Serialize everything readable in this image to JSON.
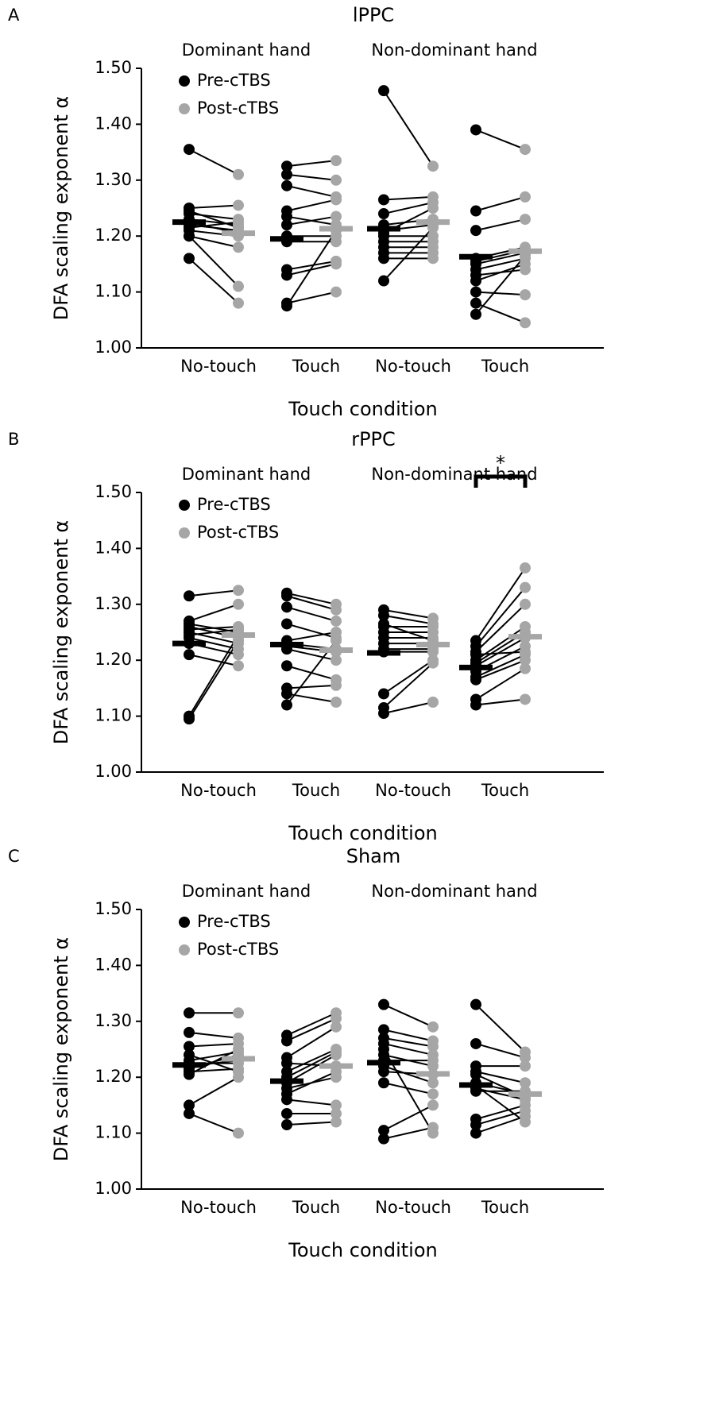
{
  "chart_data": [
    {
      "type": "paired-dot",
      "panel_label": "A",
      "title": "lPPC",
      "group_labels": [
        "Dominant hand",
        "Non-dominant hand"
      ],
      "categories": [
        "No-touch",
        "Touch",
        "No-touch",
        "Touch"
      ],
      "xlabel": "Touch condition",
      "ylabel": "DFA scaling exponent α",
      "ylim": [
        1.0,
        1.5
      ],
      "yticks": [
        {
          "value": 1.0,
          "label": "1.00"
        },
        {
          "value": 1.1,
          "label": "1.10"
        },
        {
          "value": 1.2,
          "label": "1.20"
        },
        {
          "value": 1.3,
          "label": "1.30"
        },
        {
          "value": 1.4,
          "label": "1.40"
        },
        {
          "value": 1.5,
          "label": "1.50"
        }
      ],
      "series": [
        {
          "name": "Pre-cTBS",
          "color": "#000000",
          "values": [
            [
              1.355,
              1.25,
              1.24,
              1.23,
              1.22,
              1.21,
              1.2,
              1.2,
              1.16,
              1.245,
              1.225,
              1.215
            ],
            [
              1.325,
              1.31,
              1.29,
              1.245,
              1.235,
              1.2,
              1.19,
              1.14,
              1.13,
              1.08,
              1.075,
              1.22
            ],
            [
              1.46,
              1.265,
              1.24,
              1.22,
              1.21,
              1.2,
              1.19,
              1.18,
              1.17,
              1.16,
              1.12,
              1.205
            ],
            [
              1.39,
              1.245,
              1.21,
              1.16,
              1.15,
              1.14,
              1.12,
              1.1,
              1.08,
              1.06,
              1.155,
              1.13
            ]
          ],
          "means": [
            1.225,
            1.195,
            1.213,
            1.163
          ]
        },
        {
          "name": "Post-cTBS",
          "color": "#a6a6a6",
          "values": [
            [
              1.31,
              1.255,
              1.23,
              1.22,
              1.21,
              1.2,
              1.18,
              1.11,
              1.08,
              1.215,
              1.205,
              1.225
            ],
            [
              1.335,
              1.3,
              1.27,
              1.265,
              1.22,
              1.2,
              1.19,
              1.155,
              1.15,
              1.1,
              1.21,
              1.235
            ],
            [
              1.325,
              1.27,
              1.26,
              1.23,
              1.22,
              1.2,
              1.19,
              1.18,
              1.17,
              1.16,
              1.215,
              1.25
            ],
            [
              1.355,
              1.27,
              1.23,
              1.18,
              1.17,
              1.16,
              1.15,
              1.095,
              1.045,
              1.165,
              1.175,
              1.14
            ]
          ],
          "means": [
            1.205,
            1.213,
            1.225,
            1.173
          ]
        }
      ]
    },
    {
      "type": "paired-dot",
      "panel_label": "B",
      "title": "rPPC",
      "group_labels": [
        "Dominant hand",
        "Non-dominant hand"
      ],
      "categories": [
        "No-touch",
        "Touch",
        "No-touch",
        "Touch"
      ],
      "xlabel": "Touch condition",
      "ylabel": "DFA scaling exponent α",
      "annotation": "*",
      "ylim": [
        1.0,
        1.5
      ],
      "yticks": [
        {
          "value": 1.0,
          "label": "1.00"
        },
        {
          "value": 1.1,
          "label": "1.10"
        },
        {
          "value": 1.2,
          "label": "1.20"
        },
        {
          "value": 1.3,
          "label": "1.30"
        },
        {
          "value": 1.4,
          "label": "1.40"
        },
        {
          "value": 1.5,
          "label": "1.50"
        }
      ],
      "series": [
        {
          "name": "Pre-cTBS",
          "color": "#000000",
          "values": [
            [
              1.315,
              1.27,
              1.265,
              1.26,
              1.25,
              1.24,
              1.23,
              1.21,
              1.1,
              1.095,
              1.245,
              1.255
            ],
            [
              1.32,
              1.315,
              1.295,
              1.265,
              1.23,
              1.22,
              1.19,
              1.15,
              1.14,
              1.12,
              1.225,
              1.235
            ],
            [
              1.29,
              1.28,
              1.26,
              1.25,
              1.24,
              1.23,
              1.22,
              1.14,
              1.115,
              1.105,
              1.215,
              1.265
            ],
            [
              1.235,
              1.225,
              1.215,
              1.2,
              1.19,
              1.18,
              1.17,
              1.165,
              1.13,
              1.12,
              1.21,
              1.195
            ]
          ],
          "means": [
            1.23,
            1.228,
            1.213,
            1.187
          ]
        },
        {
          "name": "Post-cTBS",
          "color": "#a6a6a6",
          "values": [
            [
              1.325,
              1.3,
              1.25,
              1.24,
              1.23,
              1.22,
              1.21,
              1.19,
              1.245,
              1.235,
              1.255,
              1.26
            ],
            [
              1.3,
              1.29,
              1.27,
              1.24,
              1.22,
              1.2,
              1.165,
              1.155,
              1.125,
              1.235,
              1.215,
              1.25
            ],
            [
              1.275,
              1.265,
              1.26,
              1.25,
              1.24,
              1.23,
              1.22,
              1.2,
              1.195,
              1.125,
              1.215,
              1.235
            ],
            [
              1.365,
              1.33,
              1.3,
              1.26,
              1.24,
              1.225,
              1.21,
              1.2,
              1.185,
              1.13,
              1.215,
              1.25
            ]
          ],
          "means": [
            1.245,
            1.218,
            1.228,
            1.242
          ]
        }
      ]
    },
    {
      "type": "paired-dot",
      "panel_label": "C",
      "title": "Sham",
      "group_labels": [
        "Dominant hand",
        "Non-dominant hand"
      ],
      "categories": [
        "No-touch",
        "Touch",
        "No-touch",
        "Touch"
      ],
      "xlabel": "Touch condition",
      "ylabel": "DFA scaling exponent α",
      "ylim": [
        1.0,
        1.5
      ],
      "yticks": [
        {
          "value": 1.0,
          "label": "1.00"
        },
        {
          "value": 1.1,
          "label": "1.10"
        },
        {
          "value": 1.2,
          "label": "1.20"
        },
        {
          "value": 1.3,
          "label": "1.30"
        },
        {
          "value": 1.4,
          "label": "1.40"
        },
        {
          "value": 1.5,
          "label": "1.50"
        }
      ],
      "series": [
        {
          "name": "Pre-cTBS",
          "color": "#000000",
          "values": [
            [
              1.315,
              1.28,
              1.255,
              1.23,
              1.22,
              1.21,
              1.15,
              1.135,
              1.225,
              1.215,
              1.24,
              1.205
            ],
            [
              1.275,
              1.265,
              1.235,
              1.21,
              1.19,
              1.18,
              1.16,
              1.135,
              1.115,
              1.225,
              1.2,
              1.17
            ],
            [
              1.33,
              1.285,
              1.27,
              1.26,
              1.24,
              1.22,
              1.19,
              1.105,
              1.09,
              1.25,
              1.23,
              1.21
            ],
            [
              1.33,
              1.26,
              1.22,
              1.21,
              1.19,
              1.18,
              1.125,
              1.115,
              1.1,
              1.185,
              1.175,
              1.205
            ]
          ],
          "means": [
            1.222,
            1.193,
            1.226,
            1.186
          ]
        },
        {
          "name": "Post-cTBS",
          "color": "#a6a6a6",
          "values": [
            [
              1.315,
              1.27,
              1.26,
              1.245,
              1.23,
              1.215,
              1.2,
              1.1,
              1.225,
              1.24,
              1.21,
              1.25
            ],
            [
              1.315,
              1.305,
              1.29,
              1.25,
              1.24,
              1.2,
              1.15,
              1.135,
              1.12,
              1.22,
              1.245,
              1.21
            ],
            [
              1.29,
              1.265,
              1.255,
              1.24,
              1.22,
              1.19,
              1.17,
              1.15,
              1.11,
              1.1,
              1.23,
              1.205
            ],
            [
              1.245,
              1.235,
              1.22,
              1.19,
              1.17,
              1.16,
              1.15,
              1.14,
              1.13,
              1.12,
              1.175,
              1.165
            ]
          ],
          "means": [
            1.233,
            1.22,
            1.206,
            1.17
          ]
        }
      ]
    }
  ]
}
